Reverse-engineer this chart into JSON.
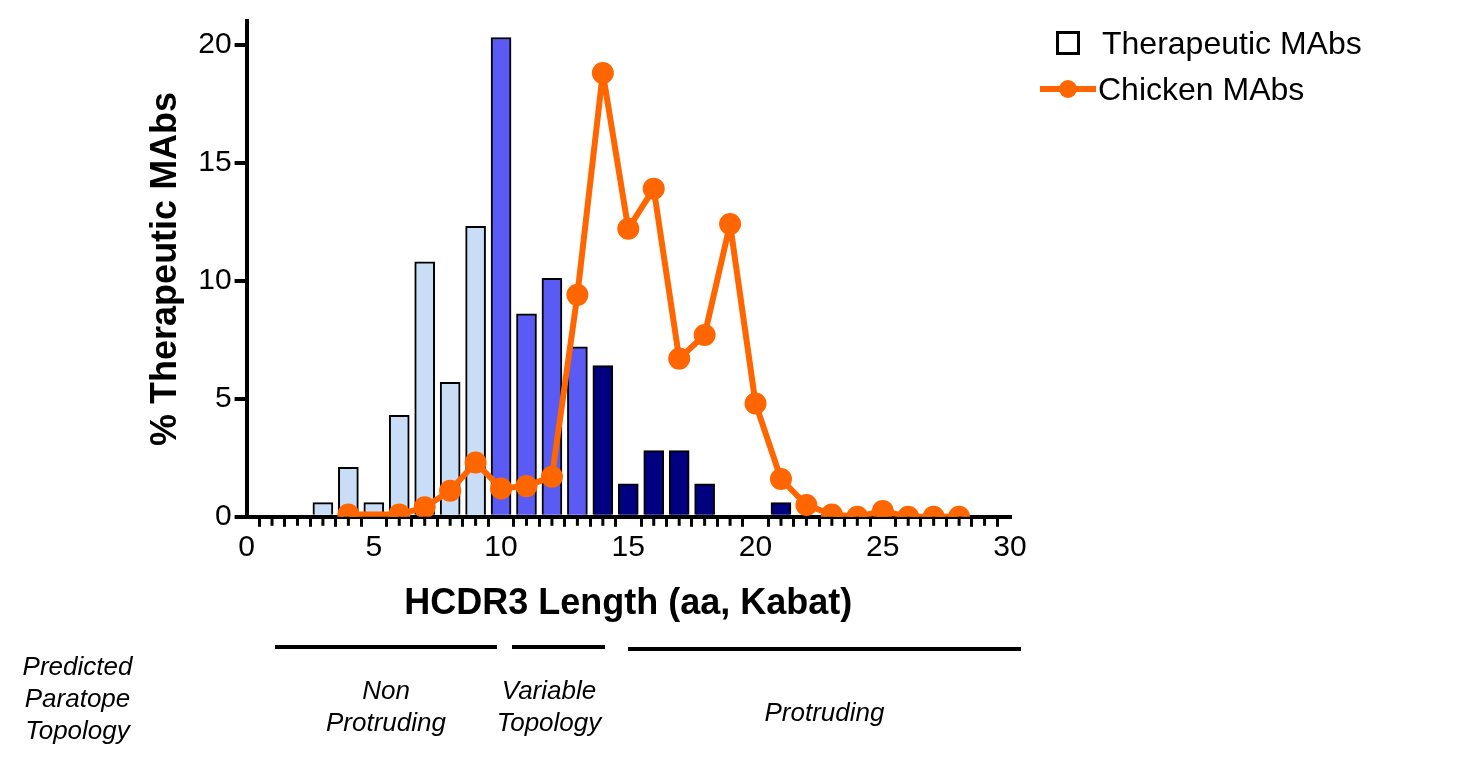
{
  "chart_data": {
    "type": "bar",
    "xlabel": "HCDR3 Length (aa, Kabat)",
    "ylabel": "% Therapeutic MAbs",
    "x": [
      1,
      2,
      3,
      4,
      5,
      6,
      7,
      8,
      9,
      10,
      11,
      12,
      13,
      14,
      15,
      16,
      17,
      18,
      19,
      20,
      21
    ],
    "series": [
      {
        "name": "Therapeutic MAbs",
        "values": [
          0,
          0,
          0.6,
          2.1,
          0.6,
          4.3,
          10.8,
          5.7,
          12.3,
          20.3,
          8.6,
          10.1,
          7.2,
          6.4,
          1.4,
          2.8,
          2.8,
          1.4,
          0,
          0,
          0.6
        ],
        "colors": [
          "#c9ddf7",
          "#c9ddf7",
          "#c9ddf7",
          "#c9ddf7",
          "#c9ddf7",
          "#c9ddf7",
          "#c9ddf7",
          "#c9ddf7",
          "#c9ddf7",
          "#5a5af5",
          "#5a5af5",
          "#5a5af5",
          "#5a5af5",
          "#000080",
          "#000080",
          "#000080",
          "#000080",
          "#000080",
          "#000080",
          "#000080",
          "#000080"
        ]
      },
      {
        "name": "Chicken MAbs",
        "type": "line",
        "color": "#ff6600",
        "x": [
          4,
          6,
          7,
          8,
          9,
          10,
          11,
          12,
          13,
          14,
          15,
          16,
          17,
          18,
          19,
          20,
          21,
          22,
          23,
          24,
          25,
          26,
          27,
          28
        ],
        "values": [
          0.1,
          0.1,
          0.4,
          1.1,
          2.3,
          1.2,
          1.3,
          1.7,
          9.4,
          18.8,
          12.2,
          13.9,
          6.7,
          7.7,
          12.4,
          4.8,
          1.6,
          0.5,
          0.1,
          0,
          0.25,
          0,
          0,
          0
        ]
      }
    ],
    "xlim": [
      0,
      30
    ],
    "xticks": [
      0,
      {
        "value": 1,
        "label": null
      },
      {
        "value": 2,
        "label": null
      },
      {
        "value": 3,
        "label": null
      },
      {
        "value": 4,
        "label": null
      },
      5,
      {
        "value": 6,
        "label": null
      },
      {
        "value": 7,
        "label": null
      },
      {
        "value": 8,
        "label": null
      },
      {
        "value": 9,
        "label": null
      },
      10,
      {
        "value": 11,
        "label": null
      },
      {
        "value": 12,
        "label": null
      },
      {
        "value": 13,
        "label": null
      },
      {
        "value": 14,
        "label": null
      },
      15,
      {
        "value": 16,
        "label": null
      },
      {
        "value": 17,
        "label": null
      },
      {
        "value": 18,
        "label": null
      },
      {
        "value": 19,
        "label": null
      },
      20,
      {
        "value": 21,
        "label": null
      },
      {
        "value": 22,
        "label": null
      },
      {
        "value": 23,
        "label": null
      },
      {
        "value": 24,
        "label": null
      },
      25,
      {
        "value": 26,
        "label": null
      },
      {
        "value": 27,
        "label": null
      },
      {
        "value": 28,
        "label": null
      },
      {
        "value": 29,
        "label": null
      },
      30
    ],
    "ylim": [
      0,
      21
    ],
    "yticks": [
      0,
      5,
      10,
      15,
      20
    ],
    "grid": false,
    "legend": "top right",
    "marker": "circle",
    "line_style": "solid",
    "annotations": [
      "Predicted Paratope Topology",
      "Non Protruding",
      "Variable Topology",
      "Protruding"
    ]
  }
}
